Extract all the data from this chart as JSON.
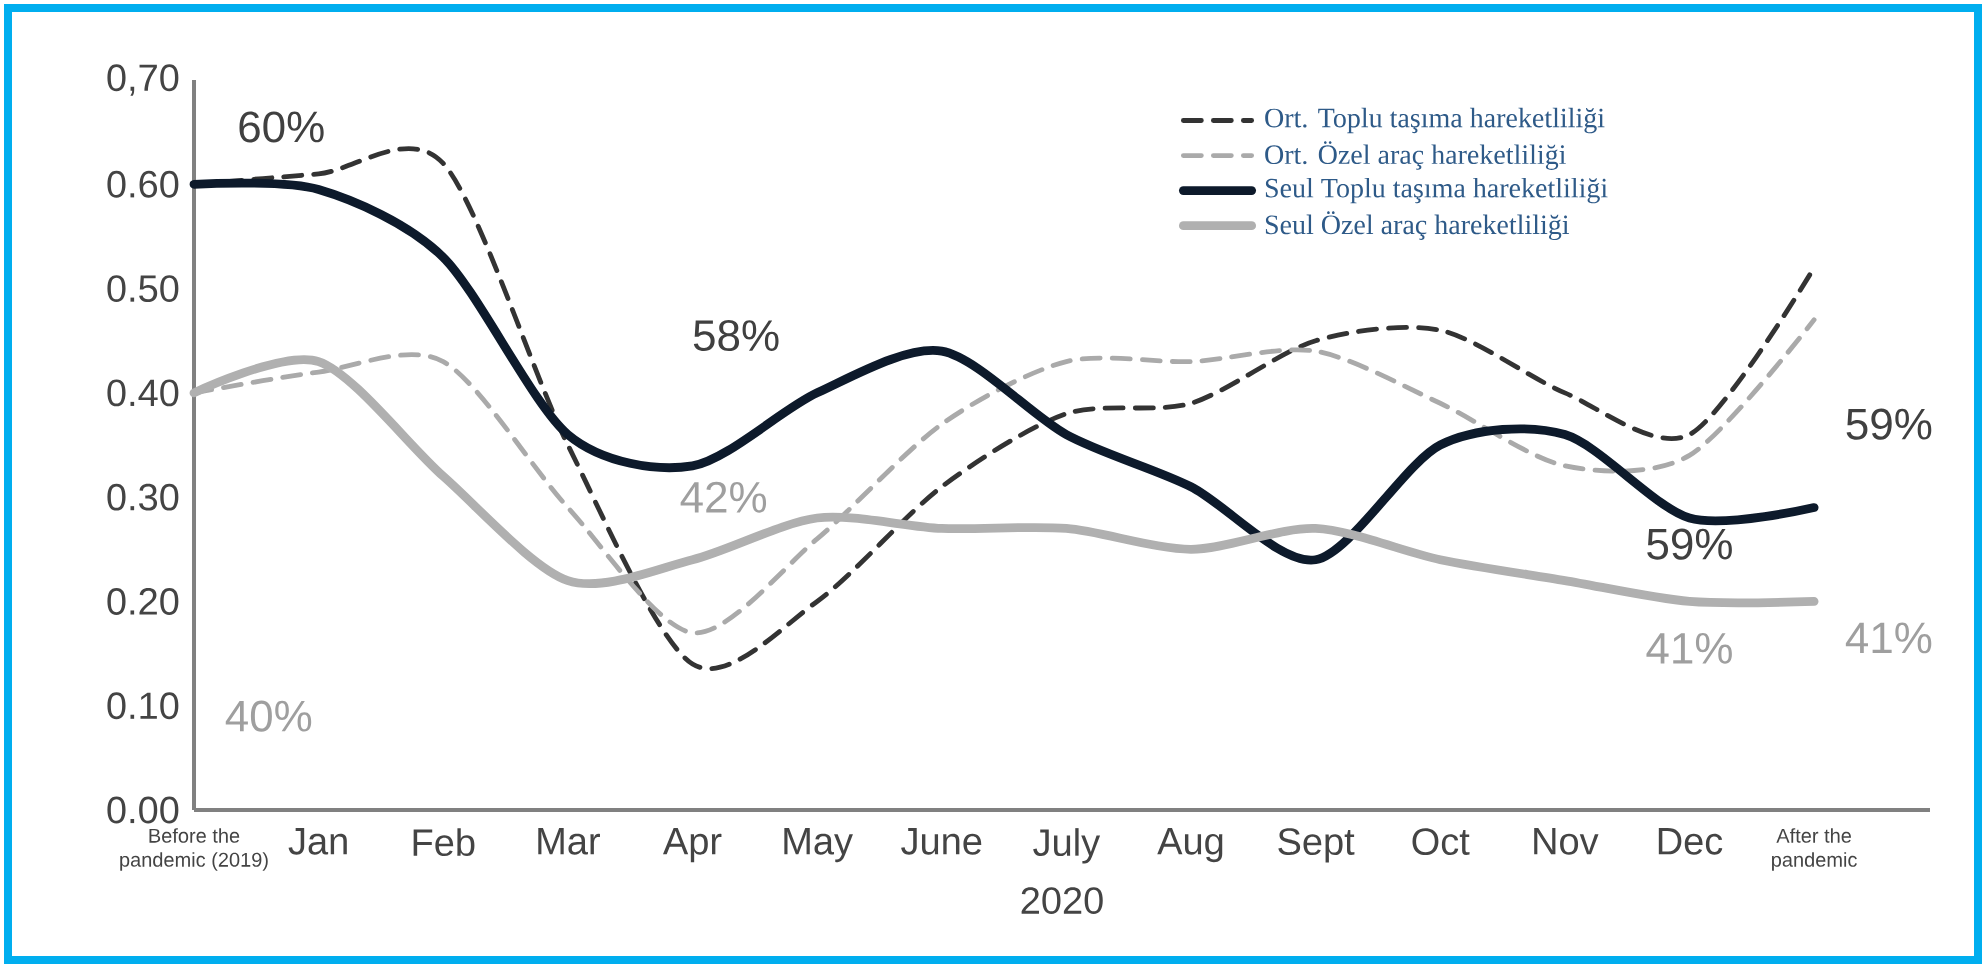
{
  "chart_data": {
    "type": "line",
    "xlabel": "2020",
    "categories": [
      "Before the pandemic (2019)",
      "Jan",
      "Feb",
      "Mar",
      "Apr",
      "May",
      "June",
      "July",
      "Aug",
      "Sept",
      "Oct",
      "Nov",
      "Dec",
      "After the pandemic"
    ],
    "ylim": [
      0,
      0.7
    ],
    "yticks": [
      {
        "value": 0,
        "label": "0.00"
      },
      {
        "value": 0.1,
        "label": "0.10"
      },
      {
        "value": 0.2,
        "label": "0.20"
      },
      {
        "value": 0.3,
        "label": "0.30"
      },
      {
        "value": 0.4,
        "label": "0.40"
      },
      {
        "value": 0.5,
        "label": "0.50"
      },
      {
        "value": 0.6,
        "label": "0.60"
      },
      {
        "value": 0.7,
        "label": "0,70"
      }
    ],
    "grid": false,
    "legend": "top",
    "series": [
      {
        "name": "Ort. Toplu taşıma hareketliliği",
        "color": "#333333",
        "line_style": "dashed",
        "values": [
          0.6,
          0.61,
          0.62,
          0.35,
          0.14,
          0.2,
          0.31,
          0.38,
          0.39,
          0.45,
          0.46,
          0.4,
          0.36,
          0.52
        ]
      },
      {
        "name": "Ort. Özel araç hareketliliği",
        "color": "#aaaaaa",
        "line_style": "dashed",
        "values": [
          0.4,
          0.42,
          0.43,
          0.29,
          0.17,
          0.26,
          0.37,
          0.43,
          0.43,
          0.44,
          0.39,
          0.33,
          0.34,
          0.47
        ]
      },
      {
        "name": "Seul Toplu taşıma hareketliliği",
        "color": "#0d1a2b",
        "line_style": "solid",
        "values": [
          0.6,
          0.595,
          0.53,
          0.36,
          0.33,
          0.4,
          0.44,
          0.36,
          0.31,
          0.24,
          0.35,
          0.36,
          0.28,
          0.29
        ]
      },
      {
        "name": "Seul Özel araç hareketliliği",
        "color": "#b0b0b0",
        "line_style": "solid",
        "values": [
          0.4,
          0.43,
          0.32,
          0.22,
          0.24,
          0.28,
          0.27,
          0.27,
          0.25,
          0.27,
          0.24,
          0.22,
          0.2,
          0.2
        ]
      }
    ],
    "annotations": [
      "60%",
      "40%",
      "58%",
      "42%",
      "59%",
      "41%",
      "59%",
      "41%"
    ]
  }
}
